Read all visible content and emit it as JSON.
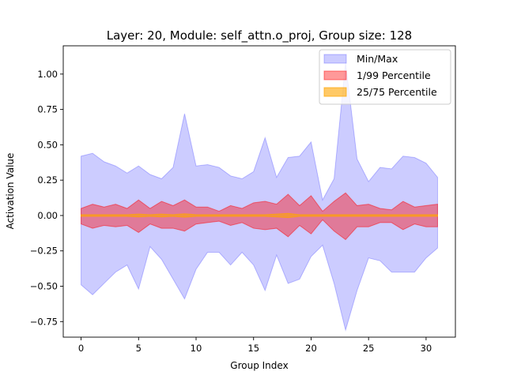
{
  "chart_data": {
    "type": "area",
    "title": "Layer: 20, Module: self_attn.o_proj,  Group size: 128",
    "xlabel": "Group Index",
    "ylabel": "Activation Value",
    "xlim": [
      -1.55,
      32.55
    ],
    "ylim": [
      -0.86,
      1.2
    ],
    "xticks": [
      0,
      5,
      10,
      15,
      20,
      25,
      30
    ],
    "xtick_labels": [
      "0",
      "5",
      "10",
      "15",
      "20",
      "25",
      "30"
    ],
    "yticks": [
      -0.75,
      -0.5,
      -0.25,
      0.0,
      0.25,
      0.5,
      0.75,
      1.0
    ],
    "ytick_labels": [
      "−0.75",
      "−0.50",
      "−0.25",
      "0.00",
      "0.25",
      "0.50",
      "0.75",
      "1.00"
    ],
    "legend_position": "top-right",
    "grid": false,
    "x": [
      0,
      1,
      2,
      3,
      4,
      5,
      6,
      7,
      8,
      9,
      10,
      11,
      12,
      13,
      14,
      15,
      16,
      17,
      18,
      19,
      20,
      21,
      22,
      23,
      24,
      25,
      26,
      27,
      28,
      29,
      30,
      31
    ],
    "series": [
      {
        "name": "Min/Max",
        "color": "#0000ff",
        "opacity": 0.2,
        "lower": [
          -0.49,
          -0.56,
          -0.48,
          -0.4,
          -0.35,
          -0.52,
          -0.22,
          -0.31,
          -0.45,
          -0.59,
          -0.38,
          -0.26,
          -0.26,
          -0.35,
          -0.26,
          -0.35,
          -0.53,
          -0.28,
          -0.48,
          -0.45,
          -0.29,
          -0.21,
          -0.48,
          -0.81,
          -0.53,
          -0.3,
          -0.32,
          -0.4,
          -0.4,
          -0.4,
          -0.3,
          -0.23
        ],
        "upper": [
          0.42,
          0.44,
          0.38,
          0.35,
          0.3,
          0.35,
          0.29,
          0.26,
          0.34,
          0.72,
          0.35,
          0.36,
          0.34,
          0.28,
          0.26,
          0.31,
          0.55,
          0.27,
          0.41,
          0.42,
          0.52,
          0.11,
          0.26,
          1.08,
          0.4,
          0.24,
          0.34,
          0.33,
          0.42,
          0.41,
          0.37,
          0.27
        ]
      },
      {
        "name": "1/99 Percentile",
        "color": "#ff0000",
        "opacity": 0.4,
        "lower": [
          -0.06,
          -0.09,
          -0.07,
          -0.08,
          -0.07,
          -0.12,
          -0.06,
          -0.09,
          -0.09,
          -0.11,
          -0.06,
          -0.05,
          -0.04,
          -0.07,
          -0.05,
          -0.09,
          -0.1,
          -0.09,
          -0.15,
          -0.07,
          -0.13,
          -0.03,
          -0.11,
          -0.17,
          -0.08,
          -0.08,
          -0.05,
          -0.05,
          -0.1,
          -0.06,
          -0.08,
          -0.08
        ],
        "upper": [
          0.05,
          0.08,
          0.06,
          0.08,
          0.05,
          0.11,
          0.05,
          0.1,
          0.07,
          0.11,
          0.06,
          0.06,
          0.03,
          0.07,
          0.05,
          0.09,
          0.1,
          0.08,
          0.15,
          0.07,
          0.14,
          0.03,
          0.1,
          0.16,
          0.07,
          0.08,
          0.05,
          0.04,
          0.1,
          0.06,
          0.07,
          0.08
        ]
      },
      {
        "name": "25/75 Percentile",
        "color": "#ffa500",
        "opacity": 0.6,
        "lower": [
          -0.006,
          -0.006,
          -0.006,
          -0.006,
          -0.006,
          -0.01,
          -0.006,
          -0.01,
          -0.006,
          -0.012,
          -0.006,
          -0.006,
          -0.006,
          -0.006,
          -0.006,
          -0.006,
          -0.006,
          -0.01,
          -0.015,
          -0.006,
          -0.006,
          -0.006,
          -0.006,
          -0.006,
          -0.006,
          -0.006,
          -0.006,
          -0.006,
          -0.006,
          -0.006,
          -0.006,
          -0.006
        ],
        "upper": [
          0.006,
          0.006,
          0.006,
          0.006,
          0.006,
          0.01,
          0.006,
          0.01,
          0.006,
          0.012,
          0.006,
          0.006,
          0.006,
          0.006,
          0.006,
          0.006,
          0.006,
          0.01,
          0.015,
          0.006,
          0.006,
          0.006,
          0.006,
          0.006,
          0.006,
          0.006,
          0.006,
          0.006,
          0.006,
          0.006,
          0.006,
          0.006
        ]
      }
    ]
  }
}
